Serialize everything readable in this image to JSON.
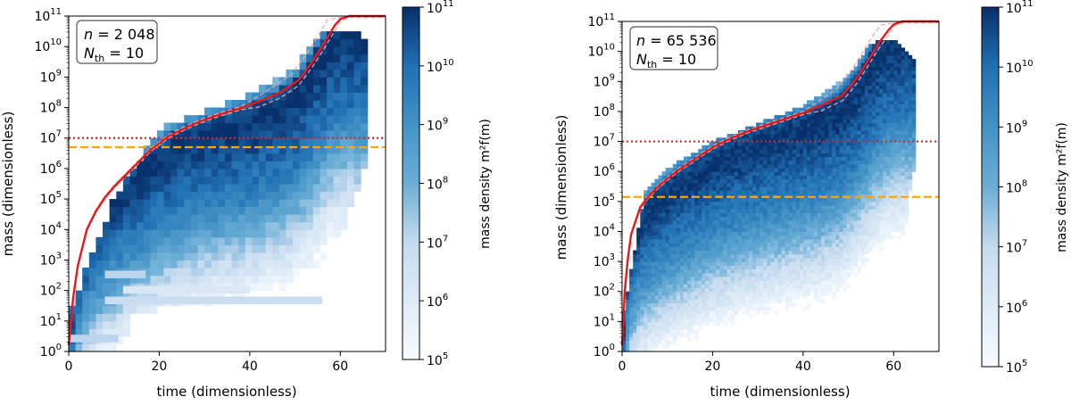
{
  "colors": {
    "heat_low": "#f7fbff",
    "heat_high": "#08306b",
    "reference_line": "#e41a1c",
    "median_band": "#f4a6a6",
    "threshold_line": "#d62728",
    "cutoff_line": "#ffa500"
  },
  "chart_data": [
    {
      "type": "heatmap",
      "id": "left",
      "annotation": {
        "n_label": "n",
        "n_value": "2 048",
        "nth_label": "N",
        "nth_sub": "th",
        "nth_value": "10"
      },
      "xlabel": "time (dimensionless)",
      "ylabel": "mass (dimensionless)",
      "xlim": [
        0,
        70
      ],
      "ylim_log10": [
        0,
        11
      ],
      "xticks": [
        0,
        20,
        40,
        60
      ],
      "xtick_labels": [
        "0",
        "20",
        "40",
        "60"
      ],
      "yticks_log10": [
        0,
        1,
        2,
        3,
        4,
        5,
        6,
        7,
        8,
        9,
        10,
        11
      ],
      "ytick_labels": [
        "0",
        "1",
        "2",
        "3",
        "4",
        "5",
        "6",
        "7",
        "8",
        "9",
        "10",
        "11"
      ],
      "colorbar": {
        "label": "mass density m²f(m)",
        "range_log10": [
          5,
          11
        ],
        "ticks_log10": [
          5,
          6,
          7,
          8,
          9,
          10,
          11
        ],
        "tick_labels": [
          "5",
          "6",
          "7",
          "8",
          "9",
          "10",
          "11"
        ]
      },
      "dotted_line_log10": 7,
      "dashed_line_log10": 6.7,
      "noise_seed": 7,
      "time_step": 1.5,
      "rows_per_decade": 4,
      "mean_curve_points": [
        [
          0,
          0.2
        ],
        [
          1,
          1.8
        ],
        [
          2,
          2.8
        ],
        [
          4,
          4.0
        ],
        [
          6,
          4.6
        ],
        [
          8,
          5.05
        ],
        [
          10,
          5.4
        ],
        [
          14,
          6.0
        ],
        [
          18,
          6.6
        ],
        [
          22,
          7.05
        ],
        [
          26,
          7.35
        ],
        [
          30,
          7.6
        ],
        [
          34,
          7.8
        ],
        [
          38,
          7.98
        ],
        [
          42,
          8.2
        ],
        [
          46,
          8.5
        ],
        [
          50,
          8.9
        ],
        [
          53,
          9.5
        ],
        [
          56,
          10.2
        ],
        [
          58,
          10.7
        ],
        [
          60,
          10.9
        ],
        [
          62,
          11.0
        ],
        [
          70,
          11.0
        ]
      ],
      "coverage_ceiling": [
        [
          0,
          1.2
        ],
        [
          10,
          5.0
        ],
        [
          20,
          7.3
        ],
        [
          30,
          7.9
        ],
        [
          40,
          8.4
        ],
        [
          50,
          9.3
        ],
        [
          55,
          10.4
        ],
        [
          60,
          10.5
        ],
        [
          64,
          10.5
        ],
        [
          66,
          10.2
        ]
      ],
      "coverage_floor": [
        [
          0,
          0
        ],
        [
          12,
          0
        ],
        [
          14,
          1.3
        ],
        [
          28,
          1.5
        ],
        [
          40,
          1.9
        ],
        [
          56,
          2.0
        ],
        [
          60,
          3.6
        ],
        [
          62,
          4.6
        ],
        [
          66,
          6.2
        ]
      ],
      "time_max": 66,
      "sparse_strips": [
        {
          "t0": 8,
          "t1": 17,
          "mass_log10": 2.4,
          "level": 0.35
        },
        {
          "t0": 8,
          "t1": 56,
          "mass_log10": 1.55,
          "level": 0.3
        },
        {
          "t0": 12,
          "t1": 40,
          "mass_log10": 1.9,
          "level": 0.2
        },
        {
          "t0": 0,
          "t1": 11,
          "mass_log10": 0.3,
          "level": 0.35
        }
      ]
    },
    {
      "type": "heatmap",
      "id": "right",
      "annotation": {
        "n_label": "n",
        "n_value": "65 536",
        "nth_label": "N",
        "nth_sub": "th",
        "nth_value": "10"
      },
      "xlabel": "time (dimensionless)",
      "ylabel": "mass (dimensionless)",
      "xlim": [
        0,
        70
      ],
      "ylim_log10": [
        0,
        11
      ],
      "xticks": [
        0,
        20,
        40,
        60
      ],
      "xtick_labels": [
        "0",
        "20",
        "40",
        "60"
      ],
      "yticks_log10": [
        0,
        1,
        2,
        3,
        4,
        5,
        6,
        7,
        8,
        9,
        10,
        11
      ],
      "ytick_labels": [
        "0",
        "1",
        "2",
        "3",
        "4",
        "5",
        "6",
        "7",
        "8",
        "9",
        "10",
        "11"
      ],
      "colorbar": {
        "label": "mass density m²f(m)",
        "range_log10": [
          5,
          11
        ],
        "ticks_log10": [
          5,
          6,
          7,
          8,
          9,
          10,
          11
        ],
        "tick_labels": [
          "5",
          "6",
          "7",
          "8",
          "9",
          "10",
          "11"
        ]
      },
      "dotted_line_log10": 7,
      "dashed_line_log10": 5.15,
      "noise_seed": 19,
      "time_step": 0.8,
      "rows_per_decade": 8,
      "mean_curve_points": [
        [
          0,
          0.2
        ],
        [
          0.6,
          2.0
        ],
        [
          1.2,
          3.0
        ],
        [
          2,
          3.9
        ],
        [
          4,
          4.8
        ],
        [
          6,
          5.2
        ],
        [
          8,
          5.5
        ],
        [
          12,
          6.0
        ],
        [
          16,
          6.4
        ],
        [
          20,
          6.8
        ],
        [
          24,
          7.1
        ],
        [
          28,
          7.35
        ],
        [
          32,
          7.55
        ],
        [
          36,
          7.75
        ],
        [
          40,
          7.95
        ],
        [
          44,
          8.2
        ],
        [
          48,
          8.55
        ],
        [
          51,
          9.1
        ],
        [
          54,
          9.8
        ],
        [
          56,
          10.3
        ],
        [
          58,
          10.7
        ],
        [
          60,
          10.9
        ],
        [
          62,
          11.0
        ],
        [
          70,
          11.0
        ]
      ],
      "coverage_ceiling": [
        [
          0,
          1.0
        ],
        [
          5,
          5.3
        ],
        [
          10,
          6.1
        ],
        [
          20,
          7.0
        ],
        [
          30,
          7.6
        ],
        [
          40,
          8.2
        ],
        [
          50,
          9.2
        ],
        [
          55,
          10.3
        ],
        [
          60,
          10.4
        ],
        [
          64,
          9.8
        ]
      ],
      "coverage_floor": [
        [
          0,
          0
        ],
        [
          60,
          0
        ],
        [
          62,
          3.0
        ],
        [
          64,
          6.0
        ]
      ],
      "time_max": 64,
      "sparse_strips": []
    }
  ]
}
